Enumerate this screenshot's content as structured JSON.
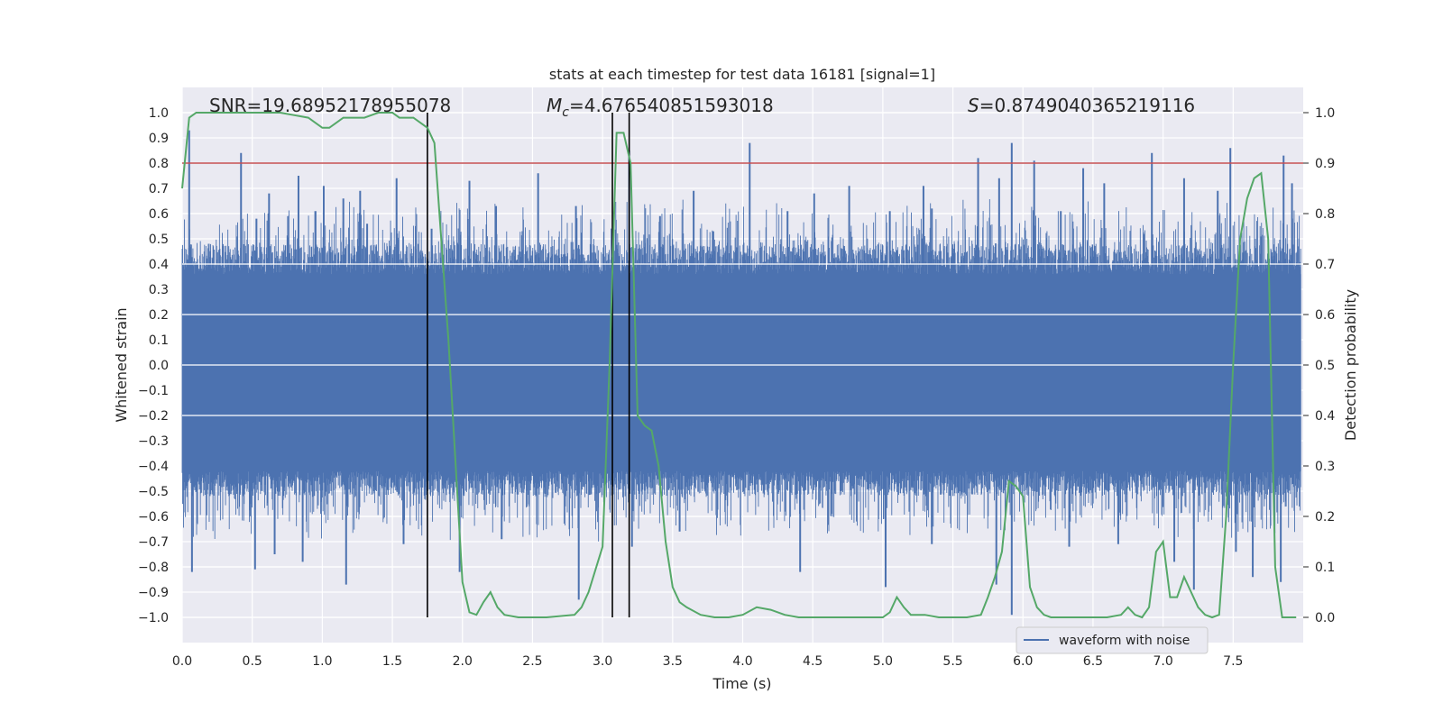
{
  "chart_data": {
    "type": "line",
    "title": "stats at each timestep for test data 16181 [signal=1]",
    "xlabel": "Time (s)",
    "ylabel": "Whitened strain",
    "y2label": "Detection probability",
    "xlim": [
      0.0,
      8.0
    ],
    "ylim": [
      -1.1,
      1.1
    ],
    "y2lim": [
      -0.05,
      1.05
    ],
    "x_ticks": [
      0.0,
      0.5,
      1.0,
      1.5,
      2.0,
      2.5,
      3.0,
      3.5,
      4.0,
      4.5,
      5.0,
      5.5,
      6.0,
      6.5,
      7.0,
      7.5
    ],
    "x_tick_labels": [
      "0.0",
      "0.5",
      "1.0",
      "1.5",
      "2.0",
      "2.5",
      "3.0",
      "3.5",
      "4.0",
      "4.5",
      "5.0",
      "5.5",
      "6.0",
      "6.5",
      "7.0",
      "7.5"
    ],
    "y_ticks": [
      1.0,
      0.9,
      0.8,
      0.7,
      0.6,
      0.5,
      0.4,
      0.3,
      0.2,
      0.1,
      0.0,
      -0.1,
      -0.2,
      -0.3,
      -0.4,
      -0.5,
      -0.6,
      -0.7,
      -0.8,
      -0.9,
      -1.0
    ],
    "y_tick_labels": [
      "1.0",
      "0.9",
      "0.8",
      "0.7",
      "0.6",
      "0.5",
      "0.4",
      "0.3",
      "0.2",
      "0.1",
      "0.0",
      "−0.1",
      "−0.2",
      "−0.3",
      "−0.4",
      "−0.5",
      "−0.6",
      "−0.7",
      "−0.8",
      "−0.9",
      "−1.0"
    ],
    "y2_ticks": [
      1.0,
      0.9,
      0.8,
      0.7,
      0.6,
      0.5,
      0.4,
      0.3,
      0.2,
      0.1,
      0.0
    ],
    "y2_tick_labels": [
      "1.0",
      "0.9",
      "0.8",
      "0.7",
      "0.6",
      "0.5",
      "0.4",
      "0.3",
      "0.2",
      "0.1",
      "0.0"
    ],
    "annotations": {
      "snr": "SNR=19.68952178955078",
      "mc_symbol": "M",
      "mc_sub": "c",
      "mc_value": "=4.676540851593018",
      "s_symbol": "S",
      "s_value": "=0.8749040365219116"
    },
    "threshold": {
      "value": 0.9,
      "axis": "y2",
      "color": "#c44e52"
    },
    "vertical_lines": [
      {
        "x": 1.75,
        "color": "#000000"
      },
      {
        "x": 3.07,
        "color": "#000000"
      },
      {
        "x": 3.19,
        "color": "#000000"
      }
    ],
    "waveform": {
      "name": "waveform with noise",
      "color": "#4c72b0",
      "band_min": -0.42,
      "band_max": 0.36,
      "peaks_up": [
        [
          0.05,
          0.93
        ],
        [
          0.42,
          0.84
        ],
        [
          0.53,
          0.58
        ],
        [
          0.62,
          0.68
        ],
        [
          0.83,
          0.75
        ],
        [
          0.95,
          0.61
        ],
        [
          1.01,
          0.71
        ],
        [
          1.15,
          0.66
        ],
        [
          1.27,
          0.69
        ],
        [
          1.32,
          0.56
        ],
        [
          1.53,
          0.74
        ],
        [
          1.78,
          0.54
        ],
        [
          2.05,
          0.73
        ],
        [
          2.24,
          0.63
        ],
        [
          2.54,
          0.76
        ],
        [
          2.81,
          0.63
        ],
        [
          3.19,
          0.85
        ],
        [
          3.41,
          0.59
        ],
        [
          3.65,
          0.69
        ],
        [
          3.79,
          0.53
        ],
        [
          4.05,
          0.88
        ],
        [
          4.32,
          0.61
        ],
        [
          4.51,
          0.68
        ],
        [
          4.76,
          0.71
        ],
        [
          5.05,
          0.61
        ],
        [
          5.29,
          0.71
        ],
        [
          5.35,
          0.62
        ],
        [
          5.68,
          0.82
        ],
        [
          5.83,
          0.74
        ],
        [
          5.92,
          0.88
        ],
        [
          6.08,
          0.81
        ],
        [
          6.27,
          0.61
        ],
        [
          6.43,
          0.78
        ],
        [
          6.58,
          0.72
        ],
        [
          6.92,
          0.84
        ],
        [
          7.15,
          0.74
        ],
        [
          7.39,
          0.69
        ],
        [
          7.48,
          0.86
        ],
        [
          7.86,
          0.83
        ],
        [
          7.92,
          0.72
        ]
      ],
      "peaks_down": [
        [
          0.07,
          -0.82
        ],
        [
          0.52,
          -0.81
        ],
        [
          0.66,
          -0.75
        ],
        [
          0.86,
          -0.78
        ],
        [
          1.17,
          -0.87
        ],
        [
          1.58,
          -0.71
        ],
        [
          1.98,
          -0.82
        ],
        [
          2.28,
          -0.69
        ],
        [
          2.83,
          -0.93
        ],
        [
          3.21,
          -0.72
        ],
        [
          3.55,
          -0.66
        ],
        [
          4.41,
          -0.82
        ],
        [
          5.02,
          -0.88
        ],
        [
          5.35,
          -0.71
        ],
        [
          5.81,
          -0.87
        ],
        [
          5.92,
          -0.99
        ],
        [
          6.33,
          -0.72
        ],
        [
          6.68,
          -0.71
        ],
        [
          7.08,
          -0.78
        ],
        [
          7.22,
          -0.89
        ],
        [
          7.52,
          -0.74
        ],
        [
          7.64,
          -0.84
        ],
        [
          7.84,
          -0.86
        ]
      ]
    },
    "probability": {
      "name": "detection probability",
      "color": "#55a868",
      "x": [
        0.0,
        0.05,
        0.1,
        0.2,
        0.3,
        0.4,
        0.5,
        0.6,
        0.7,
        0.8,
        0.9,
        1.0,
        1.05,
        1.1,
        1.15,
        1.2,
        1.3,
        1.4,
        1.5,
        1.55,
        1.6,
        1.65,
        1.7,
        1.75,
        1.8,
        1.9,
        2.0,
        2.05,
        2.1,
        2.15,
        2.2,
        2.25,
        2.3,
        2.4,
        2.6,
        2.8,
        2.85,
        2.9,
        3.0,
        3.05,
        3.1,
        3.15,
        3.2,
        3.25,
        3.3,
        3.35,
        3.4,
        3.45,
        3.5,
        3.55,
        3.6,
        3.7,
        3.8,
        3.9,
        4.0,
        4.1,
        4.2,
        4.3,
        4.4,
        4.5,
        4.6,
        4.7,
        4.8,
        4.9,
        5.0,
        5.05,
        5.1,
        5.15,
        5.2,
        5.3,
        5.4,
        5.5,
        5.6,
        5.7,
        5.75,
        5.8,
        5.85,
        5.9,
        5.95,
        6.0,
        6.05,
        6.1,
        6.15,
        6.2,
        6.3,
        6.4,
        6.5,
        6.6,
        6.7,
        6.75,
        6.8,
        6.85,
        6.9,
        6.95,
        7.0,
        7.05,
        7.1,
        7.15,
        7.2,
        7.25,
        7.3,
        7.35,
        7.4,
        7.45,
        7.5,
        7.55,
        7.6,
        7.65,
        7.7,
        7.75,
        7.8,
        7.85,
        7.9,
        7.95
      ],
      "y": [
        0.85,
        0.99,
        1.0,
        1.0,
        1.0,
        1.0,
        1.0,
        1.0,
        1.0,
        0.995,
        0.99,
        0.97,
        0.97,
        0.98,
        0.99,
        0.99,
        0.99,
        1.0,
        1.0,
        0.99,
        0.99,
        0.99,
        0.98,
        0.97,
        0.94,
        0.55,
        0.07,
        0.01,
        0.005,
        0.03,
        0.05,
        0.02,
        0.005,
        0.0,
        0.0,
        0.005,
        0.02,
        0.05,
        0.14,
        0.5,
        0.96,
        0.96,
        0.9,
        0.4,
        0.38,
        0.37,
        0.3,
        0.15,
        0.06,
        0.03,
        0.02,
        0.005,
        0.0,
        0.0,
        0.005,
        0.02,
        0.015,
        0.005,
        0.0,
        0.0,
        0.0,
        0.0,
        0.0,
        0.0,
        0.0,
        0.01,
        0.04,
        0.02,
        0.005,
        0.005,
        0.0,
        0.0,
        0.0,
        0.005,
        0.04,
        0.08,
        0.13,
        0.27,
        0.26,
        0.24,
        0.06,
        0.02,
        0.005,
        0.0,
        0.0,
        0.0,
        0.0,
        0.0,
        0.005,
        0.02,
        0.005,
        0.0,
        0.02,
        0.13,
        0.15,
        0.04,
        0.04,
        0.08,
        0.05,
        0.02,
        0.005,
        0.0,
        0.005,
        0.2,
        0.5,
        0.75,
        0.83,
        0.87,
        0.88,
        0.75,
        0.1,
        0.0,
        0.0,
        0.0
      ]
    },
    "legend": {
      "location": "lower-right",
      "entries": [
        "waveform with noise"
      ]
    }
  }
}
